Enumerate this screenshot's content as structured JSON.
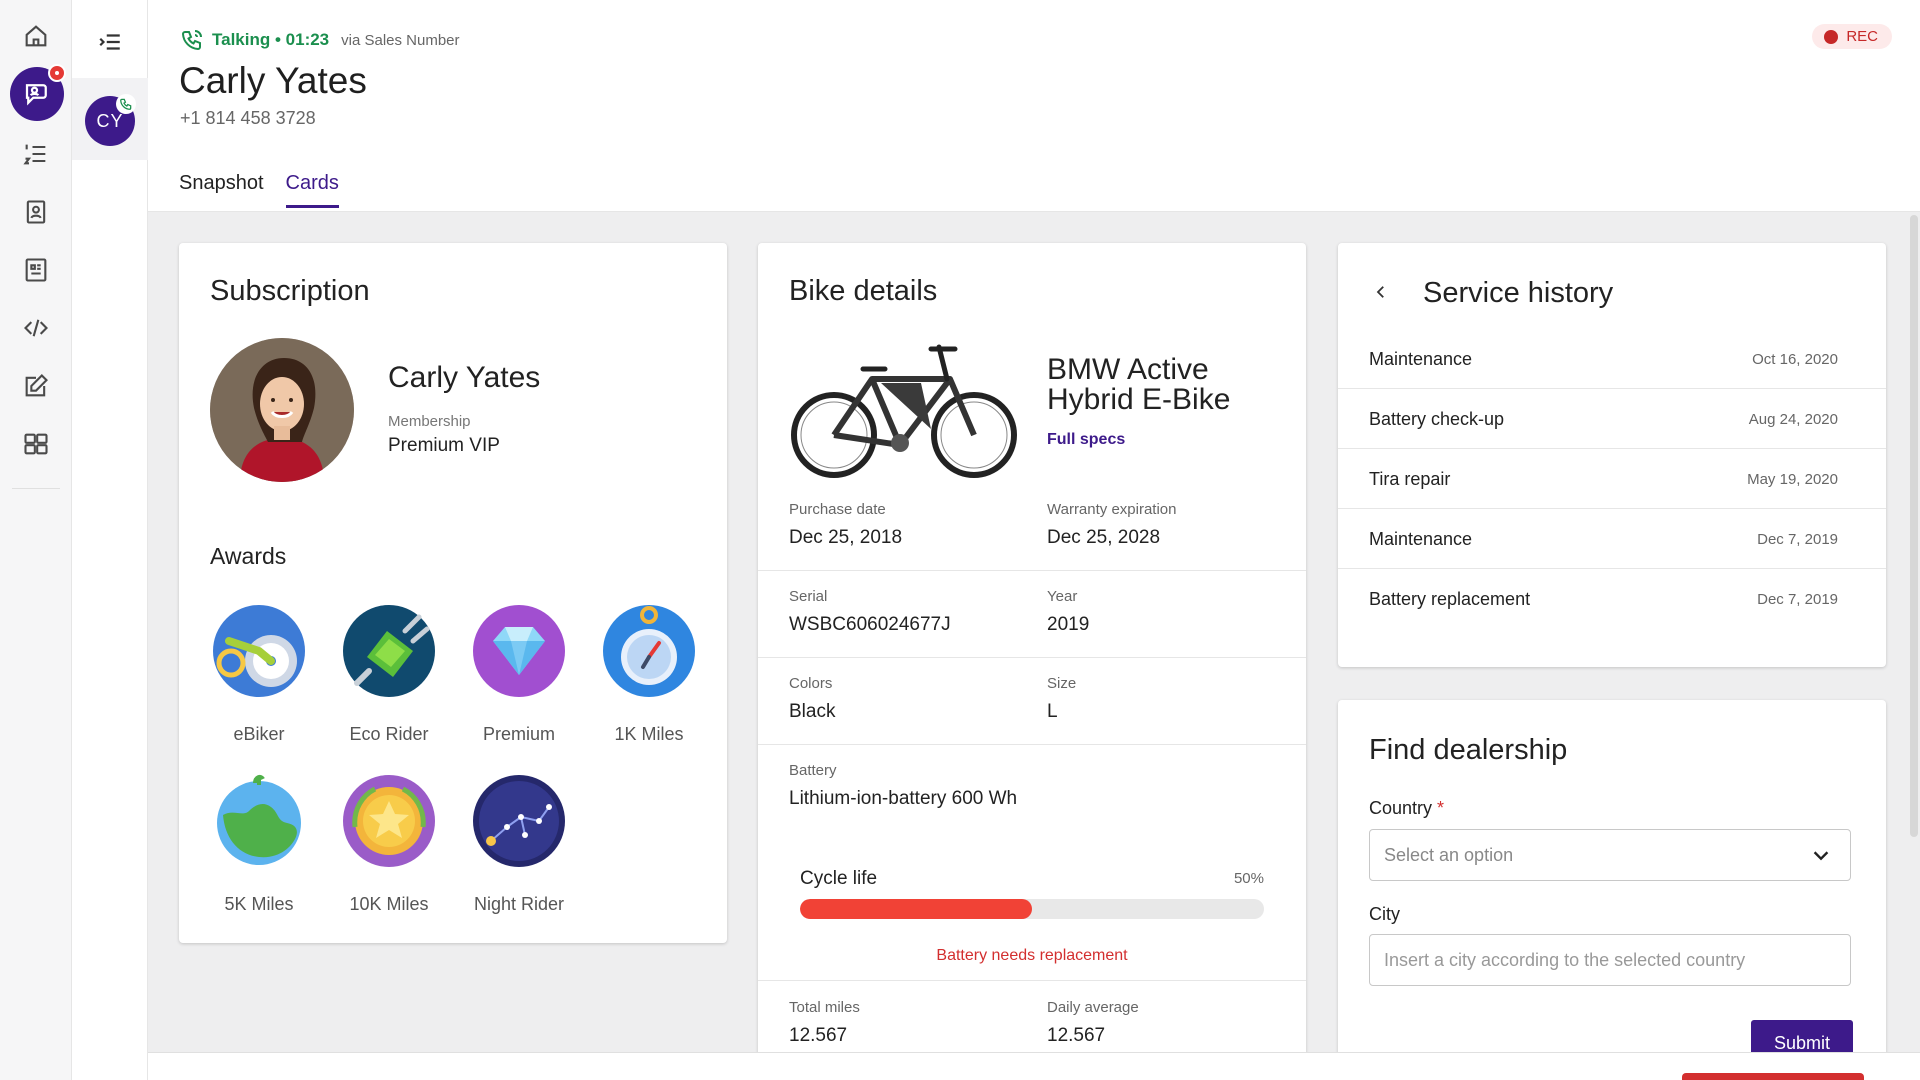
{
  "call": {
    "status": "Talking",
    "timer": "01:23",
    "via": "via Sales Number",
    "recording_label": "REC"
  },
  "contact": {
    "name": "Carly Yates",
    "phone": "+1 814 458 3728",
    "initials": "CY"
  },
  "tabs": [
    {
      "label": "Snapshot",
      "active": false
    },
    {
      "label": "Cards",
      "active": true
    }
  ],
  "subscription": {
    "title": "Subscription",
    "name": "Carly Yates",
    "membership_label": "Membership",
    "membership_value": "Premium VIP",
    "awards_title": "Awards",
    "awards": [
      {
        "label": "eBiker",
        "icon": "ebike-award-icon"
      },
      {
        "label": "Eco Rider",
        "icon": "eco-plug-award-icon"
      },
      {
        "label": "Premium",
        "icon": "diamond-award-icon"
      },
      {
        "label": "1K Miles",
        "icon": "stopwatch-award-icon"
      },
      {
        "label": "5K Miles",
        "icon": "globe-award-icon"
      },
      {
        "label": "10K Miles",
        "icon": "star-medal-award-icon"
      },
      {
        "label": "Night Rider",
        "icon": "constellation-award-icon"
      }
    ]
  },
  "bike": {
    "title": "Bike details",
    "model": "BMW Active Hybrid E-Bike",
    "specs_link": "Full specs",
    "purchase_date_label": "Purchase date",
    "purchase_date": "Dec 25, 2018",
    "warranty_label": "Warranty expiration",
    "warranty": "Dec 25, 2028",
    "serial_label": "Serial",
    "serial": "WSBC606024677J",
    "year_label": "Year",
    "year": "2019",
    "colors_label": "Colors",
    "colors": "Black",
    "size_label": "Size",
    "size": "L",
    "battery_label": "Battery",
    "battery": "Lithium-ion-battery 600 Wh",
    "cycle_label": "Cycle life",
    "cycle_percent_text": "50%",
    "cycle_fraction": 0.5,
    "cycle_warning": "Battery needs replacement",
    "total_miles_label": "Total miles",
    "total_miles": "12.567",
    "daily_avg_label": "Daily average",
    "daily_avg": "12.567"
  },
  "service_history": {
    "title": "Service history",
    "items": [
      {
        "name": "Maintenance",
        "date": "Oct 16, 2020"
      },
      {
        "name": "Battery check-up",
        "date": "Aug 24, 2020"
      },
      {
        "name": "Tira repair",
        "date": "May 19, 2020"
      },
      {
        "name": "Maintenance",
        "date": "Dec 7, 2019"
      },
      {
        "name": "Battery replacement",
        "date": "Dec 7, 2019"
      }
    ]
  },
  "dealership": {
    "title": "Find dealership",
    "country_label": "Country",
    "required_mark": "*",
    "country_placeholder": "Select an option",
    "city_label": "City",
    "city_placeholder": "Insert a city according to the selected country",
    "submit_label": "Submit"
  },
  "colors": {
    "brand": "#3d1a8a",
    "talking_green": "#1b8f4e",
    "danger": "#d32f2f",
    "progress_fill": "#f14236"
  }
}
